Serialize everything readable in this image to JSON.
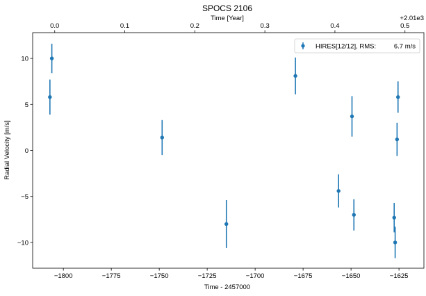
{
  "chart_data": {
    "type": "scatter",
    "title": "SPOCS 2106",
    "xlabel": "Time - 2457000",
    "ylabel": "Radial Velocity [m/s]",
    "top_xlabel": "Time [Year]",
    "top_offset_label": "+2.01e3",
    "xlim": [
      -1816,
      -1612
    ],
    "ylim": [
      -12.8,
      12.8
    ],
    "xticks": [
      -1800,
      -1775,
      -1750,
      -1725,
      -1700,
      -1675,
      -1650,
      -1625
    ],
    "xtick_labels": [
      "−1800",
      "−1775",
      "−1750",
      "−1725",
      "−1700",
      "−1675",
      "−1650",
      "−1625"
    ],
    "yticks": [
      -10,
      -5,
      0,
      5,
      10
    ],
    "ytick_labels": [
      "−10",
      "−5",
      "0",
      "5",
      "10"
    ],
    "top_ticks": [
      {
        "year_offset": 0.0,
        "label": "0.0"
      },
      {
        "year_offset": 0.1,
        "label": "0.1"
      },
      {
        "year_offset": 0.2,
        "label": "0.2"
      },
      {
        "year_offset": 0.3,
        "label": "0.3"
      },
      {
        "year_offset": 0.4,
        "label": "0.4"
      },
      {
        "year_offset": 0.5,
        "label": "0.5"
      }
    ],
    "top_axis_mapping": {
      "x_at_year_offset_0": -1804.5,
      "x_per_year_offset_unit": 365.25
    },
    "series": [
      {
        "name": "HIRES[12/12], RMS:",
        "rms": "6.7 m/s",
        "color": "#1f77b4",
        "points": [
          {
            "x": -1807.0,
            "y": 5.8,
            "err": 1.9
          },
          {
            "x": -1806.0,
            "y": 10.0,
            "err": 1.6
          },
          {
            "x": -1748.5,
            "y": 1.4,
            "err": 1.9
          },
          {
            "x": -1715.0,
            "y": -8.0,
            "err": 2.6
          },
          {
            "x": -1679.0,
            "y": 8.1,
            "err": 2.0
          },
          {
            "x": -1656.5,
            "y": -4.4,
            "err": 1.8
          },
          {
            "x": -1649.5,
            "y": 3.7,
            "err": 2.2
          },
          {
            "x": -1648.5,
            "y": -7.0,
            "err": 1.7
          },
          {
            "x": -1627.5,
            "y": -7.3,
            "err": 1.6
          },
          {
            "x": -1627.0,
            "y": -10.0,
            "err": 1.7
          },
          {
            "x": -1626.0,
            "y": 1.2,
            "err": 1.8
          },
          {
            "x": -1625.5,
            "y": 5.8,
            "err": 1.7
          }
        ]
      }
    ],
    "legend_position": "top-right",
    "grid": false
  }
}
